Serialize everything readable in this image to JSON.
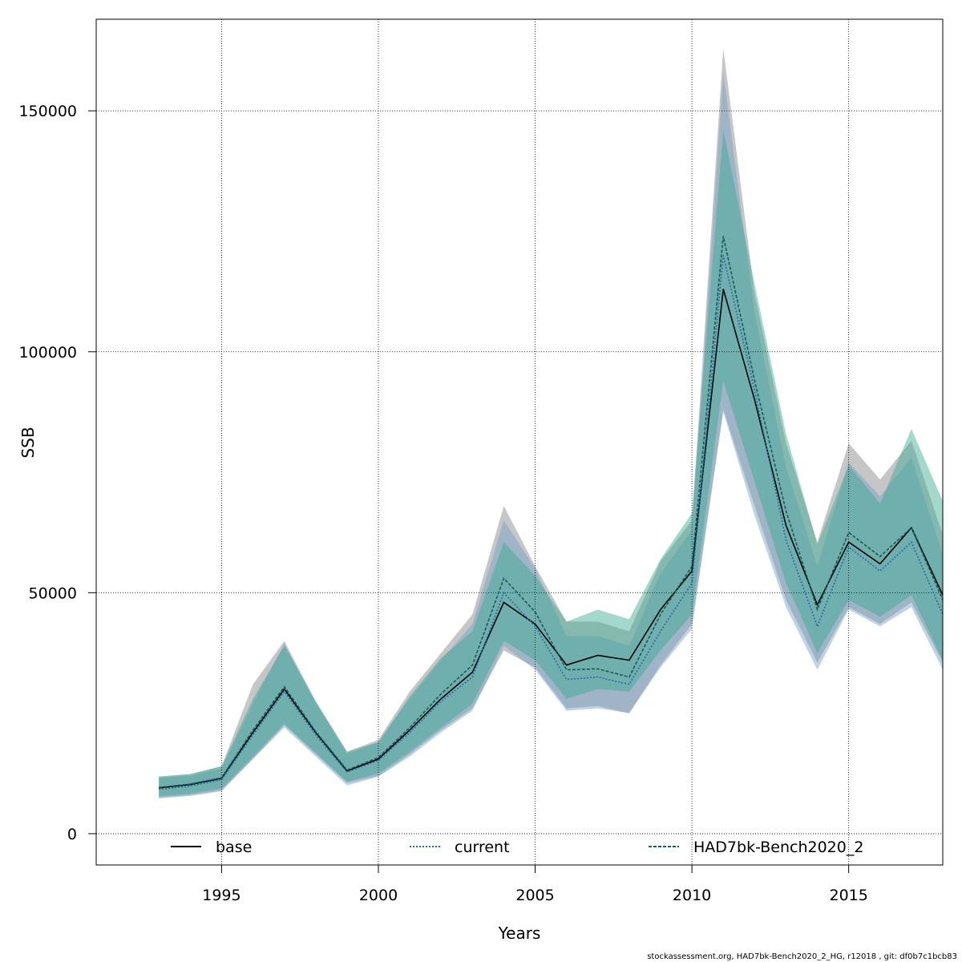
{
  "chart_data": {
    "type": "line",
    "title": "",
    "xlabel": "Years",
    "ylabel": "SSB",
    "xlim": [
      1991.0,
      2018.0
    ],
    "ylim": [
      -6500,
      169000
    ],
    "x_ticks": [
      1995,
      2000,
      2005,
      2010,
      2015
    ],
    "x_tick_labels": [
      "1995",
      "2000",
      "2005",
      "2010",
      "2015"
    ],
    "y_ticks": [
      0,
      50000,
      100000,
      150000
    ],
    "y_tick_labels": [
      "0",
      "50000",
      "100000",
      "150000"
    ],
    "grid": true,
    "legend_position": "bottom",
    "x": [
      1993,
      1994,
      1995,
      1996,
      1997,
      1998,
      1999,
      2000,
      2001,
      2002,
      2003,
      2004,
      2005,
      2006,
      2007,
      2008,
      2009,
      2010,
      2011,
      2012,
      2013,
      2014,
      2015,
      2016,
      2017,
      2018
    ],
    "series": [
      {
        "name": "base",
        "color": "#000000",
        "band_color": "#808080",
        "line_style": "solid",
        "values": [
          9500,
          10200,
          11500,
          21000,
          30000,
          21000,
          13000,
          15500,
          21500,
          28000,
          33500,
          48000,
          43500,
          35000,
          37000,
          36000,
          46500,
          54500,
          113000,
          90000,
          64000,
          47500,
          60500,
          56000,
          63500,
          49500
        ],
        "upper": [
          11800,
          12300,
          14000,
          31000,
          40000,
          27500,
          17000,
          19500,
          29500,
          37500,
          45500,
          68000,
          55500,
          44000,
          44000,
          42000,
          56500,
          65000,
          163000,
          112000,
          81000,
          60500,
          81000,
          73500,
          81500,
          62000
        ],
        "lower": [
          7500,
          8000,
          9000,
          15500,
          22500,
          16500,
          10500,
          12000,
          16500,
          21500,
          26000,
          38000,
          34500,
          26000,
          26500,
          25000,
          35000,
          43500,
          88000,
          68000,
          48500,
          35500,
          47000,
          43500,
          48000,
          35500
        ]
      },
      {
        "name": "current",
        "color": "#2a6aa8",
        "band_color": "#6ea0c8",
        "line_style": "dotted",
        "values": [
          9200,
          9900,
          11200,
          20500,
          29500,
          20500,
          12800,
          15200,
          21000,
          27500,
          32500,
          50000,
          43000,
          32000,
          32500,
          31000,
          42000,
          52000,
          120000,
          92000,
          61000,
          43000,
          59500,
          54500,
          60500,
          45500
        ],
        "upper": [
          11500,
          12000,
          13500,
          27000,
          39500,
          27000,
          16500,
          19000,
          28000,
          36000,
          43500,
          65000,
          55000,
          41000,
          41000,
          39000,
          54000,
          63000,
          158000,
          108000,
          76000,
          55500,
          77000,
          70000,
          78000,
          58000
        ],
        "lower": [
          7300,
          7800,
          8800,
          15500,
          22000,
          16000,
          10000,
          11800,
          16000,
          21000,
          25500,
          39000,
          34000,
          25500,
          26000,
          25000,
          34500,
          42500,
          87500,
          66000,
          47000,
          34000,
          46500,
          43000,
          47000,
          34000
        ]
      },
      {
        "name": "HAD7bk-Bench2020_2",
        "color": "#1a5a5a",
        "band_color": "#36a890",
        "line_style": "dashed",
        "values": [
          9600,
          10300,
          11600,
          21500,
          30500,
          21200,
          13200,
          15800,
          22000,
          29000,
          35000,
          53000,
          46000,
          34000,
          34200,
          32500,
          45500,
          55500,
          124000,
          94000,
          67000,
          46500,
          62500,
          57500,
          63500,
          48500
        ],
        "upper": [
          11900,
          12400,
          14000,
          28000,
          39000,
          27500,
          17000,
          19000,
          28500,
          36500,
          42000,
          60500,
          53500,
          44000,
          46500,
          44500,
          57000,
          66500,
          146000,
          114000,
          83000,
          60000,
          76500,
          68500,
          84000,
          69000
        ],
        "lower": [
          7800,
          8300,
          9400,
          16000,
          22800,
          16800,
          10800,
          12500,
          17000,
          22000,
          27000,
          40000,
          36000,
          28000,
          30000,
          29500,
          38000,
          45500,
          94000,
          73000,
          52000,
          37500,
          48500,
          45000,
          49500,
          36000
        ]
      }
    ]
  },
  "footer": "stockassessment.org, HAD7bk-Bench2020_2_HG, r12018 , git: df0b7c1bcb83"
}
